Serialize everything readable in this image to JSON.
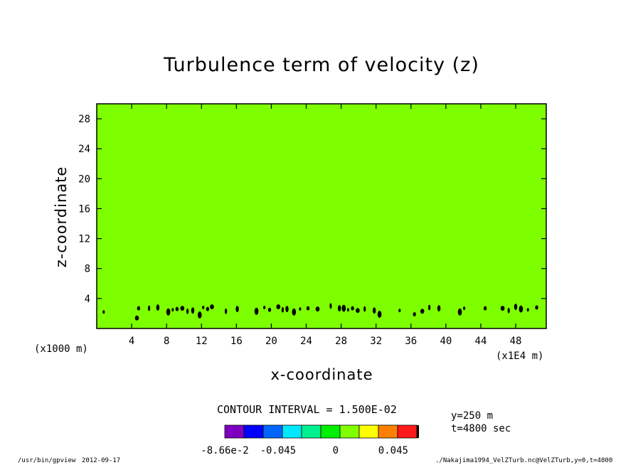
{
  "chart_data": {
    "type": "heatmap",
    "title": "Turbulence term of velocity (z)",
    "xlabel": "x-coordinate",
    "ylabel": "z-coordinate",
    "x_factor_label": "(x1000 m)",
    "x_scale_label": "(x1E4 m)",
    "xlim": [
      0,
      51.5
    ],
    "ylim": [
      0,
      30
    ],
    "x_ticks": [
      4,
      8,
      12,
      16,
      20,
      24,
      28,
      32,
      36,
      40,
      44,
      48
    ],
    "y_ticks": [
      4,
      8,
      12,
      16,
      20,
      24,
      28
    ],
    "field_value_background": 0,
    "contour_interval_text": "CONTOUR INTERVAL = 1.500E-02",
    "colorbar": {
      "colors": [
        "#7d00c0",
        "#0000ff",
        "#0066ff",
        "#00e8ff",
        "#00f090",
        "#00f000",
        "#80ff00",
        "#ffff00",
        "#ff8000",
        "#ff1a1a"
      ],
      "labels": [
        "-8.66e-2",
        "-0.045",
        "0",
        "0.045"
      ],
      "label_values": [
        -0.0866,
        -0.045,
        0,
        0.045
      ]
    },
    "background_color": "#7dff00",
    "feature_color": "#000000",
    "features": [
      {
        "x": 0.8,
        "z": 2.2
      },
      {
        "x": 4.8,
        "z": 2.7
      },
      {
        "x": 4.6,
        "z": 1.4
      },
      {
        "x": 6.0,
        "z": 2.7
      },
      {
        "x": 7.0,
        "z": 2.8
      },
      {
        "x": 8.2,
        "z": 2.2
      },
      {
        "x": 8.7,
        "z": 2.5
      },
      {
        "x": 9.2,
        "z": 2.6
      },
      {
        "x": 9.8,
        "z": 2.7
      },
      {
        "x": 10.4,
        "z": 2.3
      },
      {
        "x": 11.0,
        "z": 2.4
      },
      {
        "x": 11.8,
        "z": 1.8
      },
      {
        "x": 12.2,
        "z": 2.8
      },
      {
        "x": 12.7,
        "z": 2.6
      },
      {
        "x": 13.2,
        "z": 2.9
      },
      {
        "x": 14.8,
        "z": 2.3
      },
      {
        "x": 16.1,
        "z": 2.6
      },
      {
        "x": 18.3,
        "z": 2.3
      },
      {
        "x": 19.2,
        "z": 2.8
      },
      {
        "x": 19.8,
        "z": 2.5
      },
      {
        "x": 20.8,
        "z": 2.9
      },
      {
        "x": 21.3,
        "z": 2.5
      },
      {
        "x": 21.8,
        "z": 2.6
      },
      {
        "x": 22.6,
        "z": 2.2
      },
      {
        "x": 23.3,
        "z": 2.6
      },
      {
        "x": 24.2,
        "z": 2.7
      },
      {
        "x": 25.3,
        "z": 2.6
      },
      {
        "x": 26.8,
        "z": 3.0
      },
      {
        "x": 27.8,
        "z": 2.7
      },
      {
        "x": 28.3,
        "z": 2.7
      },
      {
        "x": 28.8,
        "z": 2.5
      },
      {
        "x": 29.3,
        "z": 2.7
      },
      {
        "x": 29.9,
        "z": 2.4
      },
      {
        "x": 30.7,
        "z": 2.6
      },
      {
        "x": 31.8,
        "z": 2.4
      },
      {
        "x": 32.4,
        "z": 1.9
      },
      {
        "x": 34.7,
        "z": 2.4
      },
      {
        "x": 36.4,
        "z": 1.9
      },
      {
        "x": 37.3,
        "z": 2.3
      },
      {
        "x": 38.1,
        "z": 2.8
      },
      {
        "x": 39.2,
        "z": 2.7
      },
      {
        "x": 41.6,
        "z": 2.2
      },
      {
        "x": 42.1,
        "z": 2.7
      },
      {
        "x": 44.5,
        "z": 2.7
      },
      {
        "x": 46.5,
        "z": 2.7
      },
      {
        "x": 47.2,
        "z": 2.4
      },
      {
        "x": 48.0,
        "z": 2.9
      },
      {
        "x": 48.6,
        "z": 2.6
      },
      {
        "x": 49.4,
        "z": 2.5
      },
      {
        "x": 50.4,
        "z": 2.8
      }
    ]
  },
  "annotations": {
    "y_position": "y=250 m",
    "time": "t=4800 sec",
    "program": "/usr/bin/gpview",
    "date": "2012-09-17",
    "source": "./Nakajima1994_VelZTurb.nc@VelZTurb,y=0,t=4800"
  }
}
